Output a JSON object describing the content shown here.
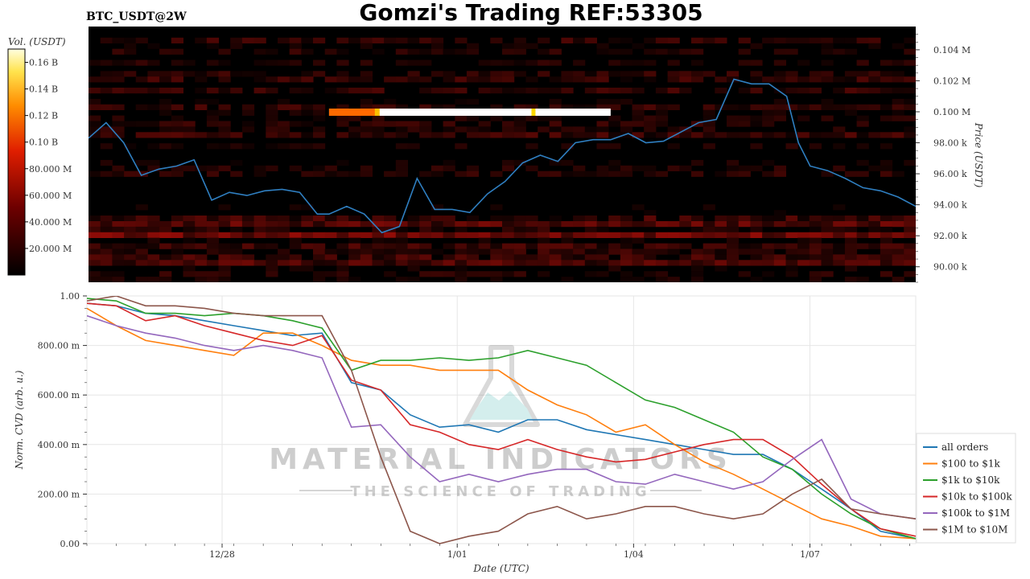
{
  "chart_data": [
    {
      "type": "heatmap",
      "title": "Gomzi's Trading REF:53305",
      "symbol": "BTC_USDT@2W",
      "colorbar_label": "Vol. (USDT)",
      "colorbar_ticks": [
        "20.000 M",
        "40.000 M",
        "60.000 M",
        "80.000 M",
        "0.10 B",
        "0.12 B",
        "0.14 B",
        "0.16 B"
      ],
      "colorbar_values": [
        20,
        40,
        60,
        80,
        100,
        120,
        140,
        160
      ],
      "colorbar_range": [
        0,
        170
      ],
      "ylabel": "Price (USDT)",
      "ylim": [
        89000,
        105500
      ],
      "y_ticks": [
        {
          "label": "90.00 k",
          "value": 90000
        },
        {
          "label": "92.00 k",
          "value": 92000
        },
        {
          "label": "94.00 k",
          "value": 94000
        },
        {
          "label": "96.00 k",
          "value": 96000
        },
        {
          "label": "98.00 k",
          "value": 98000
        },
        {
          "label": "0.100 M",
          "value": 100000
        },
        {
          "label": "0.102 M",
          "value": 102000
        },
        {
          "label": "0.104 M",
          "value": 104000
        }
      ],
      "xlim": [
        0,
        14.1
      ],
      "price_series": {
        "name": "Price",
        "color": "#2f7fc1",
        "x": [
          0,
          0.3,
          0.6,
          0.9,
          1.2,
          1.5,
          1.8,
          2.1,
          2.4,
          2.7,
          3.0,
          3.3,
          3.6,
          3.9,
          4.1,
          4.4,
          4.7,
          5.0,
          5.3,
          5.6,
          5.9,
          6.2,
          6.5,
          6.8,
          7.1,
          7.4,
          7.7,
          8.0,
          8.3,
          8.6,
          8.9,
          9.2,
          9.5,
          9.8,
          10.1,
          10.4,
          10.7,
          11.0,
          11.3,
          11.6,
          11.9,
          12.1,
          12.3,
          12.6,
          12.9,
          13.2,
          13.5,
          13.8,
          14.1
        ],
        "y": [
          98300,
          99300,
          98000,
          95900,
          96300,
          96500,
          96900,
          94300,
          94800,
          94600,
          94900,
          95000,
          94800,
          93400,
          93400,
          93900,
          93400,
          92200,
          92600,
          95700,
          93700,
          93700,
          93500,
          94700,
          95500,
          96700,
          97200,
          96800,
          98000,
          98200,
          98200,
          98600,
          98000,
          98100,
          98700,
          99300,
          99500,
          102100,
          101800,
          101800,
          101000,
          98000,
          96500,
          96200,
          95700,
          95100,
          94900,
          94500,
          93900
        ]
      },
      "bright_band": {
        "price": 100000,
        "x_start": 4.1,
        "x_end": 8.9
      }
    },
    {
      "type": "line",
      "ylabel": "Norm. CVD (arb. u.)",
      "xlabel": "Date (UTC)",
      "xlim": [
        0,
        14.1
      ],
      "ylim": [
        0,
        1
      ],
      "y_ticks": [
        {
          "label": "0.00",
          "value": 0
        },
        {
          "label": "200.00 m",
          "value": 0.2
        },
        {
          "label": "400.00 m",
          "value": 0.4
        },
        {
          "label": "600.00 m",
          "value": 0.6
        },
        {
          "label": "800.00 m",
          "value": 0.8
        },
        {
          "label": "1.00",
          "value": 1.0
        }
      ],
      "x_ticks": [
        {
          "label": "12/28",
          "value": 2.3
        },
        {
          "label": "1/01",
          "value": 6.3
        },
        {
          "label": "1/04",
          "value": 9.3
        },
        {
          "label": "1/07",
          "value": 12.3
        }
      ],
      "x": [
        0,
        0.5,
        1.0,
        1.5,
        2.0,
        2.5,
        3.0,
        3.5,
        4.0,
        4.5,
        5.0,
        5.5,
        6.0,
        6.5,
        7.0,
        7.5,
        8.0,
        8.5,
        9.0,
        9.5,
        10.0,
        10.5,
        11.0,
        11.5,
        12.0,
        12.5,
        13.0,
        13.5,
        14.1
      ],
      "series": [
        {
          "name": "all orders",
          "color": "#1f77b4",
          "values": [
            0.97,
            0.96,
            0.93,
            0.92,
            0.9,
            0.88,
            0.86,
            0.84,
            0.85,
            0.65,
            0.62,
            0.52,
            0.47,
            0.48,
            0.45,
            0.5,
            0.5,
            0.46,
            0.44,
            0.42,
            0.4,
            0.38,
            0.36,
            0.36,
            0.3,
            0.22,
            0.14,
            0.05,
            0.02
          ]
        },
        {
          "name": "$100 to $1k",
          "color": "#ff7f0e",
          "values": [
            0.95,
            0.88,
            0.82,
            0.8,
            0.78,
            0.76,
            0.85,
            0.85,
            0.8,
            0.74,
            0.72,
            0.72,
            0.7,
            0.7,
            0.7,
            0.62,
            0.56,
            0.52,
            0.45,
            0.48,
            0.4,
            0.33,
            0.28,
            0.22,
            0.16,
            0.1,
            0.07,
            0.03,
            0.02
          ]
        },
        {
          "name": "$1k to $10k",
          "color": "#2ca02c",
          "values": [
            0.99,
            0.98,
            0.93,
            0.93,
            0.92,
            0.93,
            0.92,
            0.9,
            0.87,
            0.7,
            0.74,
            0.74,
            0.75,
            0.74,
            0.75,
            0.78,
            0.75,
            0.72,
            0.65,
            0.58,
            0.55,
            0.5,
            0.45,
            0.35,
            0.3,
            0.2,
            0.12,
            0.06,
            0.02
          ]
        },
        {
          "name": "$10k to $100k",
          "color": "#d62728",
          "values": [
            0.97,
            0.96,
            0.9,
            0.92,
            0.88,
            0.85,
            0.82,
            0.8,
            0.84,
            0.66,
            0.62,
            0.48,
            0.45,
            0.4,
            0.38,
            0.42,
            0.38,
            0.35,
            0.33,
            0.34,
            0.37,
            0.4,
            0.42,
            0.42,
            0.35,
            0.24,
            0.14,
            0.06,
            0.03
          ]
        },
        {
          "name": "$100k to $1M",
          "color": "#9467bd",
          "values": [
            0.92,
            0.88,
            0.85,
            0.83,
            0.8,
            0.78,
            0.8,
            0.78,
            0.75,
            0.47,
            0.48,
            0.35,
            0.25,
            0.28,
            0.25,
            0.28,
            0.3,
            0.3,
            0.25,
            0.24,
            0.28,
            0.25,
            0.22,
            0.25,
            0.34,
            0.42,
            0.18,
            0.12,
            0.1
          ]
        },
        {
          "name": "$1M to $10M",
          "color": "#8c564b",
          "values": [
            0.98,
            1.0,
            0.96,
            0.96,
            0.95,
            0.93,
            0.92,
            0.92,
            0.92,
            0.7,
            0.35,
            0.05,
            0.0,
            0.03,
            0.05,
            0.12,
            0.15,
            0.1,
            0.12,
            0.15,
            0.15,
            0.12,
            0.1,
            0.12,
            0.2,
            0.26,
            0.14,
            0.12,
            0.1
          ]
        }
      ],
      "legend_placement": "right"
    }
  ],
  "watermark": {
    "title": "MATERIAL INDICATORS",
    "subtitle": "THE SCIENCE OF TRADING"
  }
}
